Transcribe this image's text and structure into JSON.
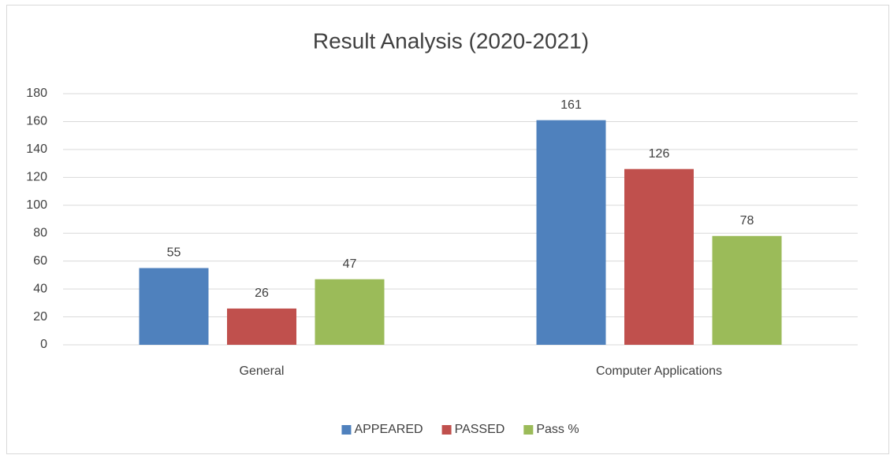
{
  "chart_data": {
    "type": "bar",
    "title": "Result Analysis (2020-2021)",
    "categories": [
      "General",
      "Computer Applications"
    ],
    "series": [
      {
        "name": "APPEARED",
        "color": "#4f81bd",
        "values": [
          55,
          161
        ]
      },
      {
        "name": "PASSED",
        "color": "#c0504d",
        "values": [
          26,
          126
        ]
      },
      {
        "name": "Pass %",
        "color": "#9bbb59",
        "values": [
          47,
          78
        ]
      }
    ],
    "ylim": [
      0,
      180
    ],
    "yticks": [
      0,
      20,
      40,
      60,
      80,
      100,
      120,
      140,
      160,
      180
    ],
    "grid": true,
    "legend": "bottom"
  }
}
